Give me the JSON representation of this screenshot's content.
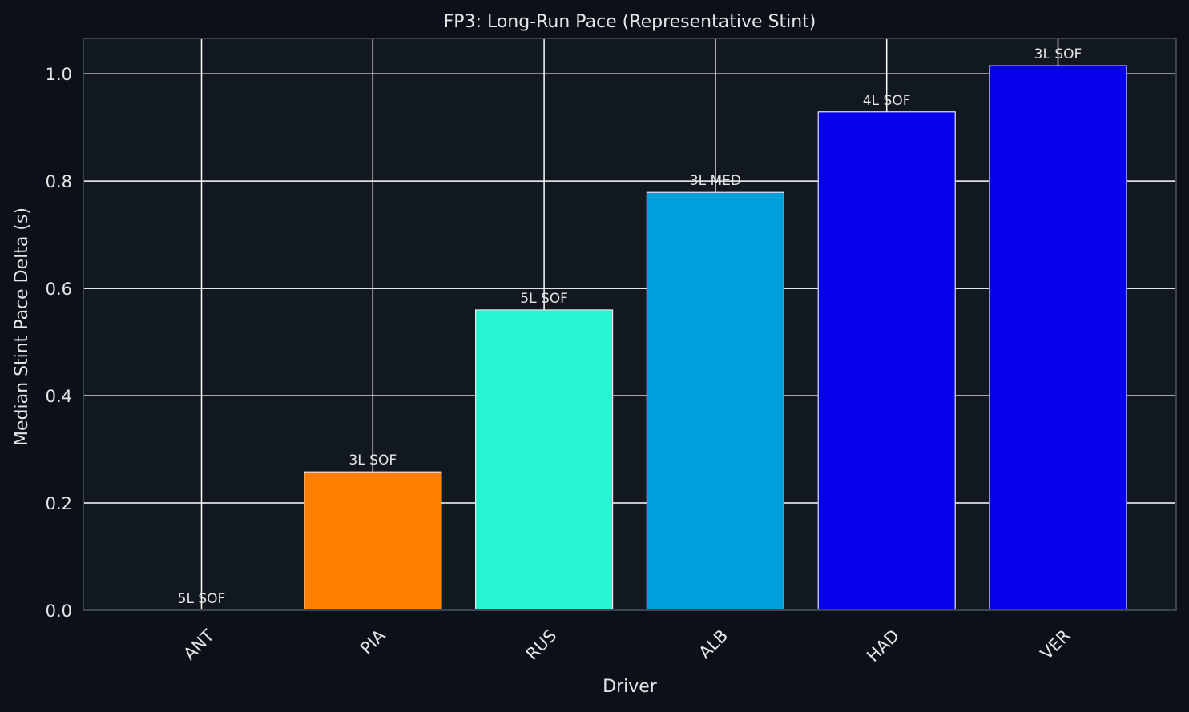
{
  "chart_data": {
    "type": "bar",
    "title": "FP3: Long-Run Pace (Representative Stint)",
    "xlabel": "Driver",
    "ylabel": "Median Stint Pace Delta (s)",
    "categories": [
      "ANT",
      "PIA",
      "RUS",
      "ALB",
      "HAD",
      "VER"
    ],
    "values": [
      0.0,
      0.258,
      0.56,
      0.779,
      0.929,
      1.015
    ],
    "bar_labels": [
      "5L SOF",
      "3L SOF",
      "5L SOF",
      "3L MED",
      "4L SOF",
      "3L SOF"
    ],
    "bar_colors": [
      "#ff8000",
      "#ff8000",
      "#27f4d2",
      "#00a0dd",
      "#0600ef",
      "#0600ef"
    ],
    "ylim": [
      0,
      1.066
    ],
    "yticks": [
      0.0,
      0.2,
      0.4,
      0.6,
      0.8,
      1.0
    ],
    "ytick_labels": [
      "0.0",
      "0.2",
      "0.4",
      "0.6",
      "0.8",
      "1.0"
    ],
    "grid": true,
    "legend": "none",
    "colors": {
      "page_background": "#0c1119",
      "plot_background": "#121820",
      "grid": "#ffffff",
      "axis_frame": "#3c4452",
      "text": "#e6e6e6"
    }
  }
}
